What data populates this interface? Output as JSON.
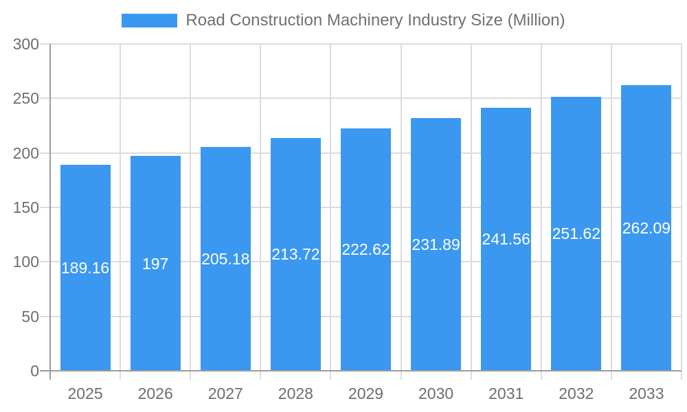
{
  "legend": {
    "label": "Road Construction Machinery Industry Size (Million)"
  },
  "colors": {
    "bar": "#3B98F0",
    "grid": "#DCDCDC",
    "axis": "#9C9C9C",
    "tick_text": "#6E6E6E",
    "bar_label_text": "#FFFFFF",
    "legend_text": "#707070",
    "background": "#FFFFFF"
  },
  "chart_data": {
    "type": "bar",
    "title": "Road Construction Machinery Industry Size (Million)",
    "categories": [
      "2025",
      "2026",
      "2027",
      "2028",
      "2029",
      "2030",
      "2031",
      "2032",
      "2033"
    ],
    "series": [
      {
        "name": "Road Construction Machinery Industry Size (Million)",
        "values": [
          189.16,
          197,
          205.18,
          213.72,
          222.62,
          231.89,
          241.56,
          251.62,
          262.09
        ]
      }
    ],
    "xlabel": "",
    "ylabel": "",
    "ylim": [
      0,
      300
    ],
    "yticks": [
      0,
      50,
      100,
      150,
      200,
      250,
      300
    ],
    "grid": true,
    "legend_position": "top",
    "value_labels_position": "center-of-bar"
  }
}
